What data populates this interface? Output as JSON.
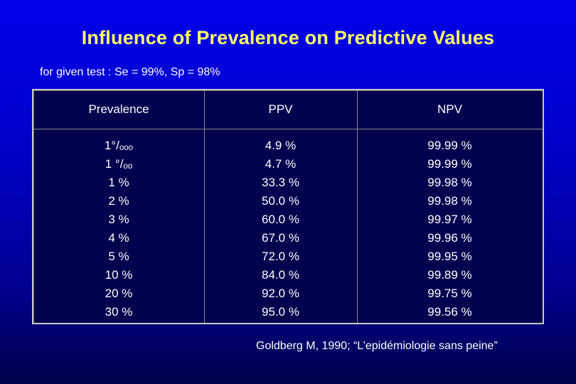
{
  "slide": {
    "title": "Influence of Prevalence on Predictive Values",
    "subtitle": "for given test : Se = 99%, Sp = 98%",
    "citation": "Goldberg M, 1990; “L’epidémiologie sans peine”"
  },
  "colors": {
    "background_top": "#0000e8",
    "background_bottom": "#00004a",
    "title": "#ffff66",
    "text": "#ffffff",
    "table_border": "#c8c8c8"
  },
  "table": {
    "headers": [
      "Prevalence",
      "PPV",
      "NPV"
    ],
    "rows": [
      {
        "prevalence": "1°/ₒₒₒ",
        "ppv": "4.9 %",
        "npv": "99.99 %"
      },
      {
        "prevalence": "1 °/ₒₒ",
        "ppv": "4.7 %",
        "npv": "99.99 %"
      },
      {
        "prevalence": "1 %",
        "ppv": "33.3 %",
        "npv": "99.98 %"
      },
      {
        "prevalence": "2 %",
        "ppv": "50.0 %",
        "npv": "99.98 %"
      },
      {
        "prevalence": "3 %",
        "ppv": "60.0 %",
        "npv": "99.97 %"
      },
      {
        "prevalence": "4 %",
        "ppv": "67.0 %",
        "npv": "99.96 %"
      },
      {
        "prevalence": "5 %",
        "ppv": "72.0 %",
        "npv": "99.95 %"
      },
      {
        "prevalence": "10 %",
        "ppv": "84.0 %",
        "npv": "99.89 %"
      },
      {
        "prevalence": "20 %",
        "ppv": "92.0 %",
        "npv": "99.75 %"
      },
      {
        "prevalence": "30 %",
        "ppv": "95.0 %",
        "npv": "99.56 %"
      }
    ]
  }
}
